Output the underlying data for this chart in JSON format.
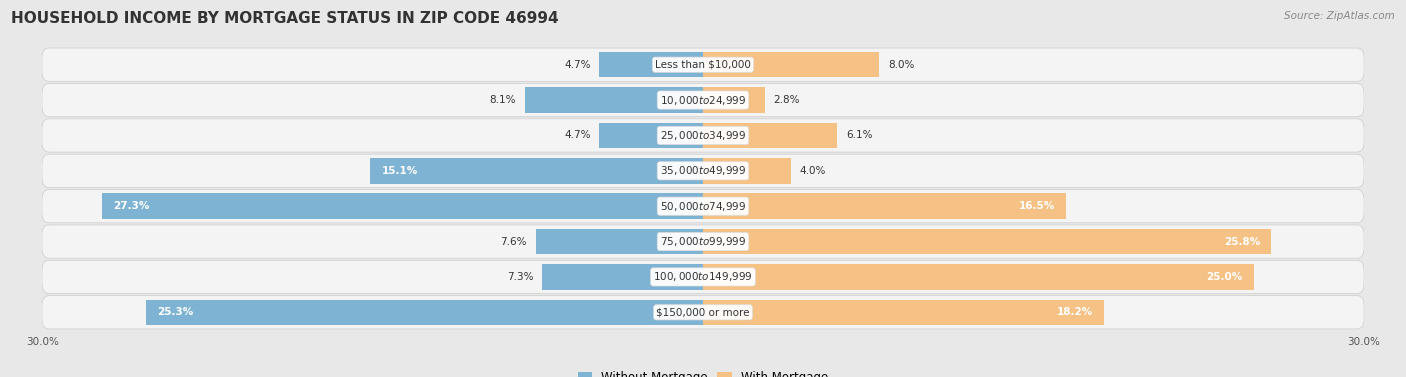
{
  "title": "HOUSEHOLD INCOME BY MORTGAGE STATUS IN ZIP CODE 46994",
  "source": "Source: ZipAtlas.com",
  "categories": [
    "Less than $10,000",
    "$10,000 to $24,999",
    "$25,000 to $34,999",
    "$35,000 to $49,999",
    "$50,000 to $74,999",
    "$75,000 to $99,999",
    "$100,000 to $149,999",
    "$150,000 or more"
  ],
  "without_mortgage": [
    4.7,
    8.1,
    4.7,
    15.1,
    27.3,
    7.6,
    7.3,
    25.3
  ],
  "with_mortgage": [
    8.0,
    2.8,
    6.1,
    4.0,
    16.5,
    25.8,
    25.0,
    18.2
  ],
  "color_without": "#7FB3D3",
  "color_with": "#F5C185",
  "xlim": 30.0,
  "bg_color": "#e8e8e8",
  "row_bg_color": "#f4f4f4",
  "title_fontsize": 11,
  "label_fontsize": 7.5,
  "value_fontsize": 7.5,
  "legend_fontsize": 8.5,
  "axis_label_fontsize": 7.5,
  "source_fontsize": 7.5
}
